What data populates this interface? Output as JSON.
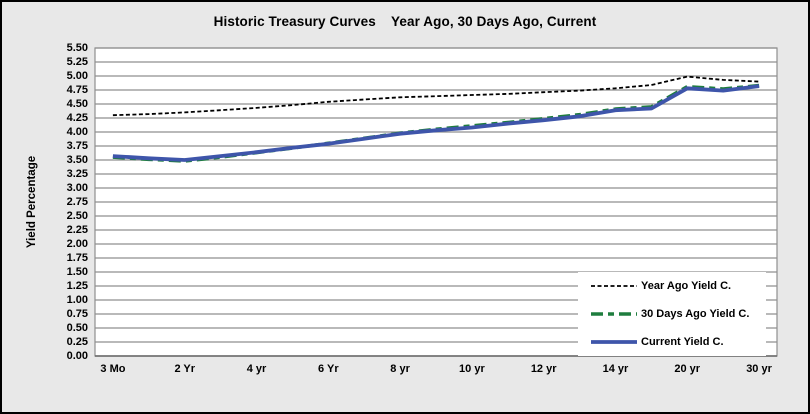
{
  "chart_data": {
    "type": "line",
    "title": "Historic Treasury Curves    Year Ago, 30 Days Ago, Current",
    "ylabel": "Yield Percentage",
    "xlabel": "",
    "ylim": [
      0.0,
      5.5
    ],
    "ytick_labels": [
      "0.00",
      "0.25",
      "0.50",
      "0.75",
      "1.00",
      "1.25",
      "1.50",
      "1.75",
      "2.00",
      "2.25",
      "2.50",
      "2.75",
      "3.00",
      "3.25",
      "3.50",
      "3.75",
      "4.00",
      "4.25",
      "4.50",
      "4.75",
      "5.00",
      "5.25",
      "5.50"
    ],
    "categories": [
      "3 Mo",
      "2 Yr",
      "4 yr",
      "6 Yr",
      "8 yr",
      "10 yr",
      "12 yr",
      "14 yr",
      "20 yr",
      "30 yr"
    ],
    "grid": "horizontal",
    "legend_position": "inside-bottom-right",
    "figure_bg": "#e8e8e8",
    "plot_bg": "#ffffff",
    "grid_color": "#8f8f8f",
    "axis_color": "#6b6b6b",
    "series": [
      {
        "name": "Year Ago Yield C.",
        "color": "#000000",
        "line": "dashed-thin",
        "x": [
          0,
          0.5,
          1,
          1.5,
          2,
          2.5,
          3,
          3.5,
          4,
          4.5,
          5,
          5.5,
          6,
          6.5,
          7,
          7.5,
          8,
          8.5,
          9
        ],
        "values": [
          4.3,
          4.32,
          4.35,
          4.39,
          4.43,
          4.48,
          4.54,
          4.58,
          4.62,
          4.64,
          4.66,
          4.68,
          4.71,
          4.74,
          4.78,
          4.84,
          4.99,
          4.93,
          4.9
        ]
      },
      {
        "name": "30 Days Ago Yield C.",
        "color": "#1e7d3e",
        "line": "dashed-thick",
        "x": [
          0,
          0.5,
          1,
          1.5,
          2,
          2.5,
          3,
          3.5,
          4,
          4.5,
          5,
          5.5,
          6,
          6.5,
          7,
          7.5,
          8,
          8.5,
          9
        ],
        "values": [
          3.55,
          3.51,
          3.48,
          3.55,
          3.63,
          3.71,
          3.8,
          3.89,
          3.98,
          4.05,
          4.11,
          4.17,
          4.24,
          4.31,
          4.41,
          4.45,
          4.81,
          4.77,
          4.83
        ]
      },
      {
        "name": "Current Yield C.",
        "color": "#3e55aa",
        "line": "solid-thick",
        "x": [
          0,
          0.5,
          1,
          1.5,
          2,
          2.5,
          3,
          3.5,
          4,
          4.5,
          5,
          5.5,
          6,
          6.5,
          7,
          7.5,
          8,
          8.5,
          9
        ],
        "values": [
          3.57,
          3.53,
          3.5,
          3.57,
          3.64,
          3.72,
          3.79,
          3.88,
          3.97,
          4.03,
          4.08,
          4.15,
          4.21,
          4.28,
          4.39,
          4.42,
          4.78,
          4.74,
          4.82
        ]
      }
    ]
  }
}
